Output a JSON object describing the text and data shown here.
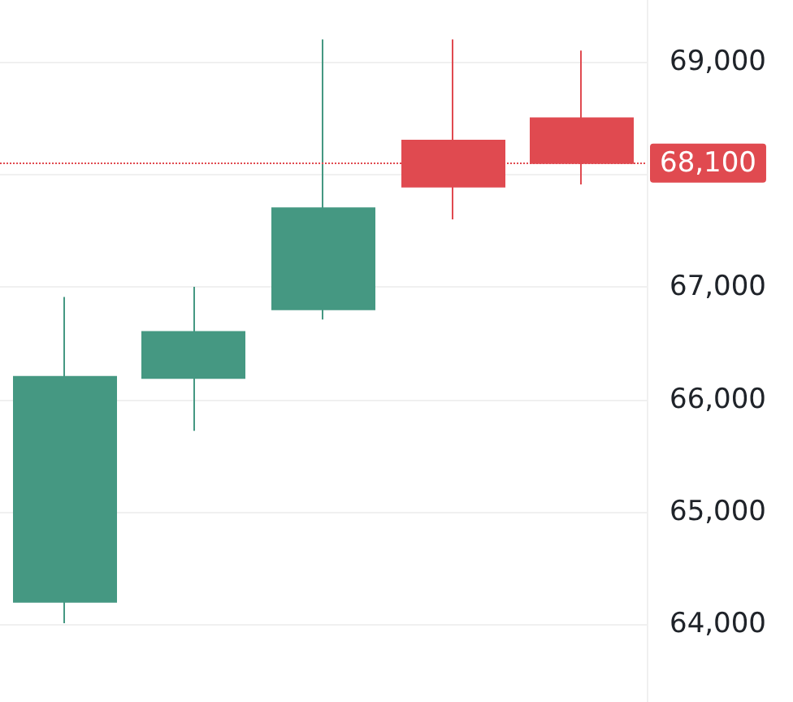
{
  "chart_data": {
    "type": "candlestick",
    "categories": [
      null,
      null,
      null,
      null,
      null
    ],
    "ohlc": [
      [
        64200,
        66910,
        64010,
        66200
      ],
      [
        66190,
        67000,
        65720,
        66600
      ],
      [
        66800,
        69200,
        66710,
        67700
      ],
      [
        68300,
        69200,
        67600,
        67890
      ],
      [
        68500,
        69100,
        67910,
        68100
      ]
    ],
    "colors": [
      "#459882",
      "#459882",
      "#459882",
      "#e04a50",
      "#e04a50"
    ],
    "ylim": [
      63310,
      69550
    ],
    "yticks": [
      {
        "value": 64000,
        "label": "64,000"
      },
      {
        "value": 65000,
        "label": "65,000"
      },
      {
        "value": 66000,
        "label": "66,000"
      },
      {
        "value": 67000,
        "label": "67,000"
      },
      {
        "value": 68000,
        "label": null
      },
      {
        "value": 69000,
        "label": "69,000"
      }
    ],
    "ref_lines": [
      {
        "axis": "y",
        "value": 68100,
        "label": "68,100",
        "color": "#e04a50",
        "line_style": "dotted"
      }
    ],
    "grid": "y",
    "tick_labels": "y"
  }
}
